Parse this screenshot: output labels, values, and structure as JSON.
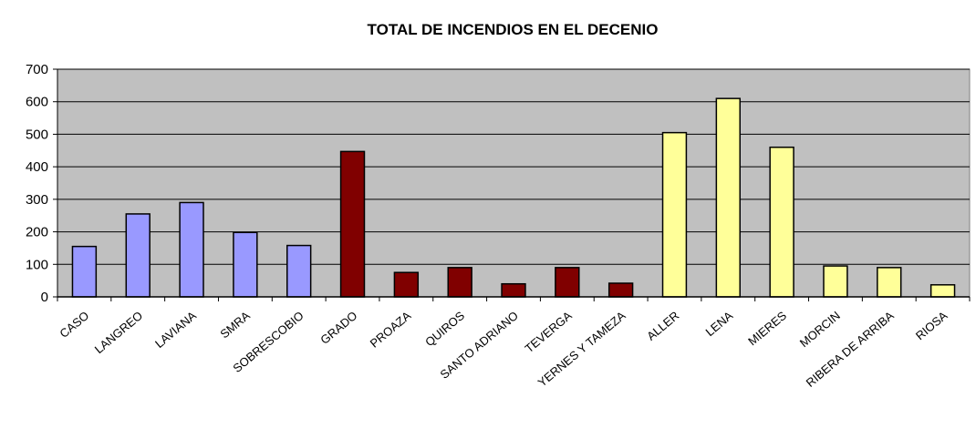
{
  "chart_data": {
    "type": "bar",
    "title": "TOTAL DE INCENDIOS EN EL DECENIO",
    "xlabel": "",
    "ylabel": "",
    "ylim": [
      0,
      700
    ],
    "yticks": [
      "0",
      "100",
      "200",
      "300",
      "400",
      "500",
      "600",
      "700"
    ],
    "grid": true,
    "legend": "none",
    "plot_background": "#c0c0c0",
    "categories": [
      "CASO",
      "LANGREO",
      "LAVIANA",
      "SMRA",
      "SOBRESCOBIO",
      "GRADO",
      "PROAZA",
      "QUIROS",
      "SANTO ADRIANO",
      "TEVERGA",
      "YERNES Y TAMEZA",
      "ALLER",
      "LENA",
      "MIERES",
      "MORCIN",
      "RIBERA DE ARRIBA",
      "RIOSA"
    ],
    "values": [
      155,
      255,
      290,
      198,
      158,
      447,
      75,
      90,
      40,
      90,
      42,
      505,
      610,
      460,
      95,
      90,
      37
    ],
    "bar_colors": [
      "#9999ff",
      "#9999ff",
      "#9999ff",
      "#9999ff",
      "#9999ff",
      "#800000",
      "#800000",
      "#800000",
      "#800000",
      "#800000",
      "#800000",
      "#ffff99",
      "#ffff99",
      "#ffff99",
      "#ffff99",
      "#ffff99",
      "#ffff99"
    ]
  }
}
